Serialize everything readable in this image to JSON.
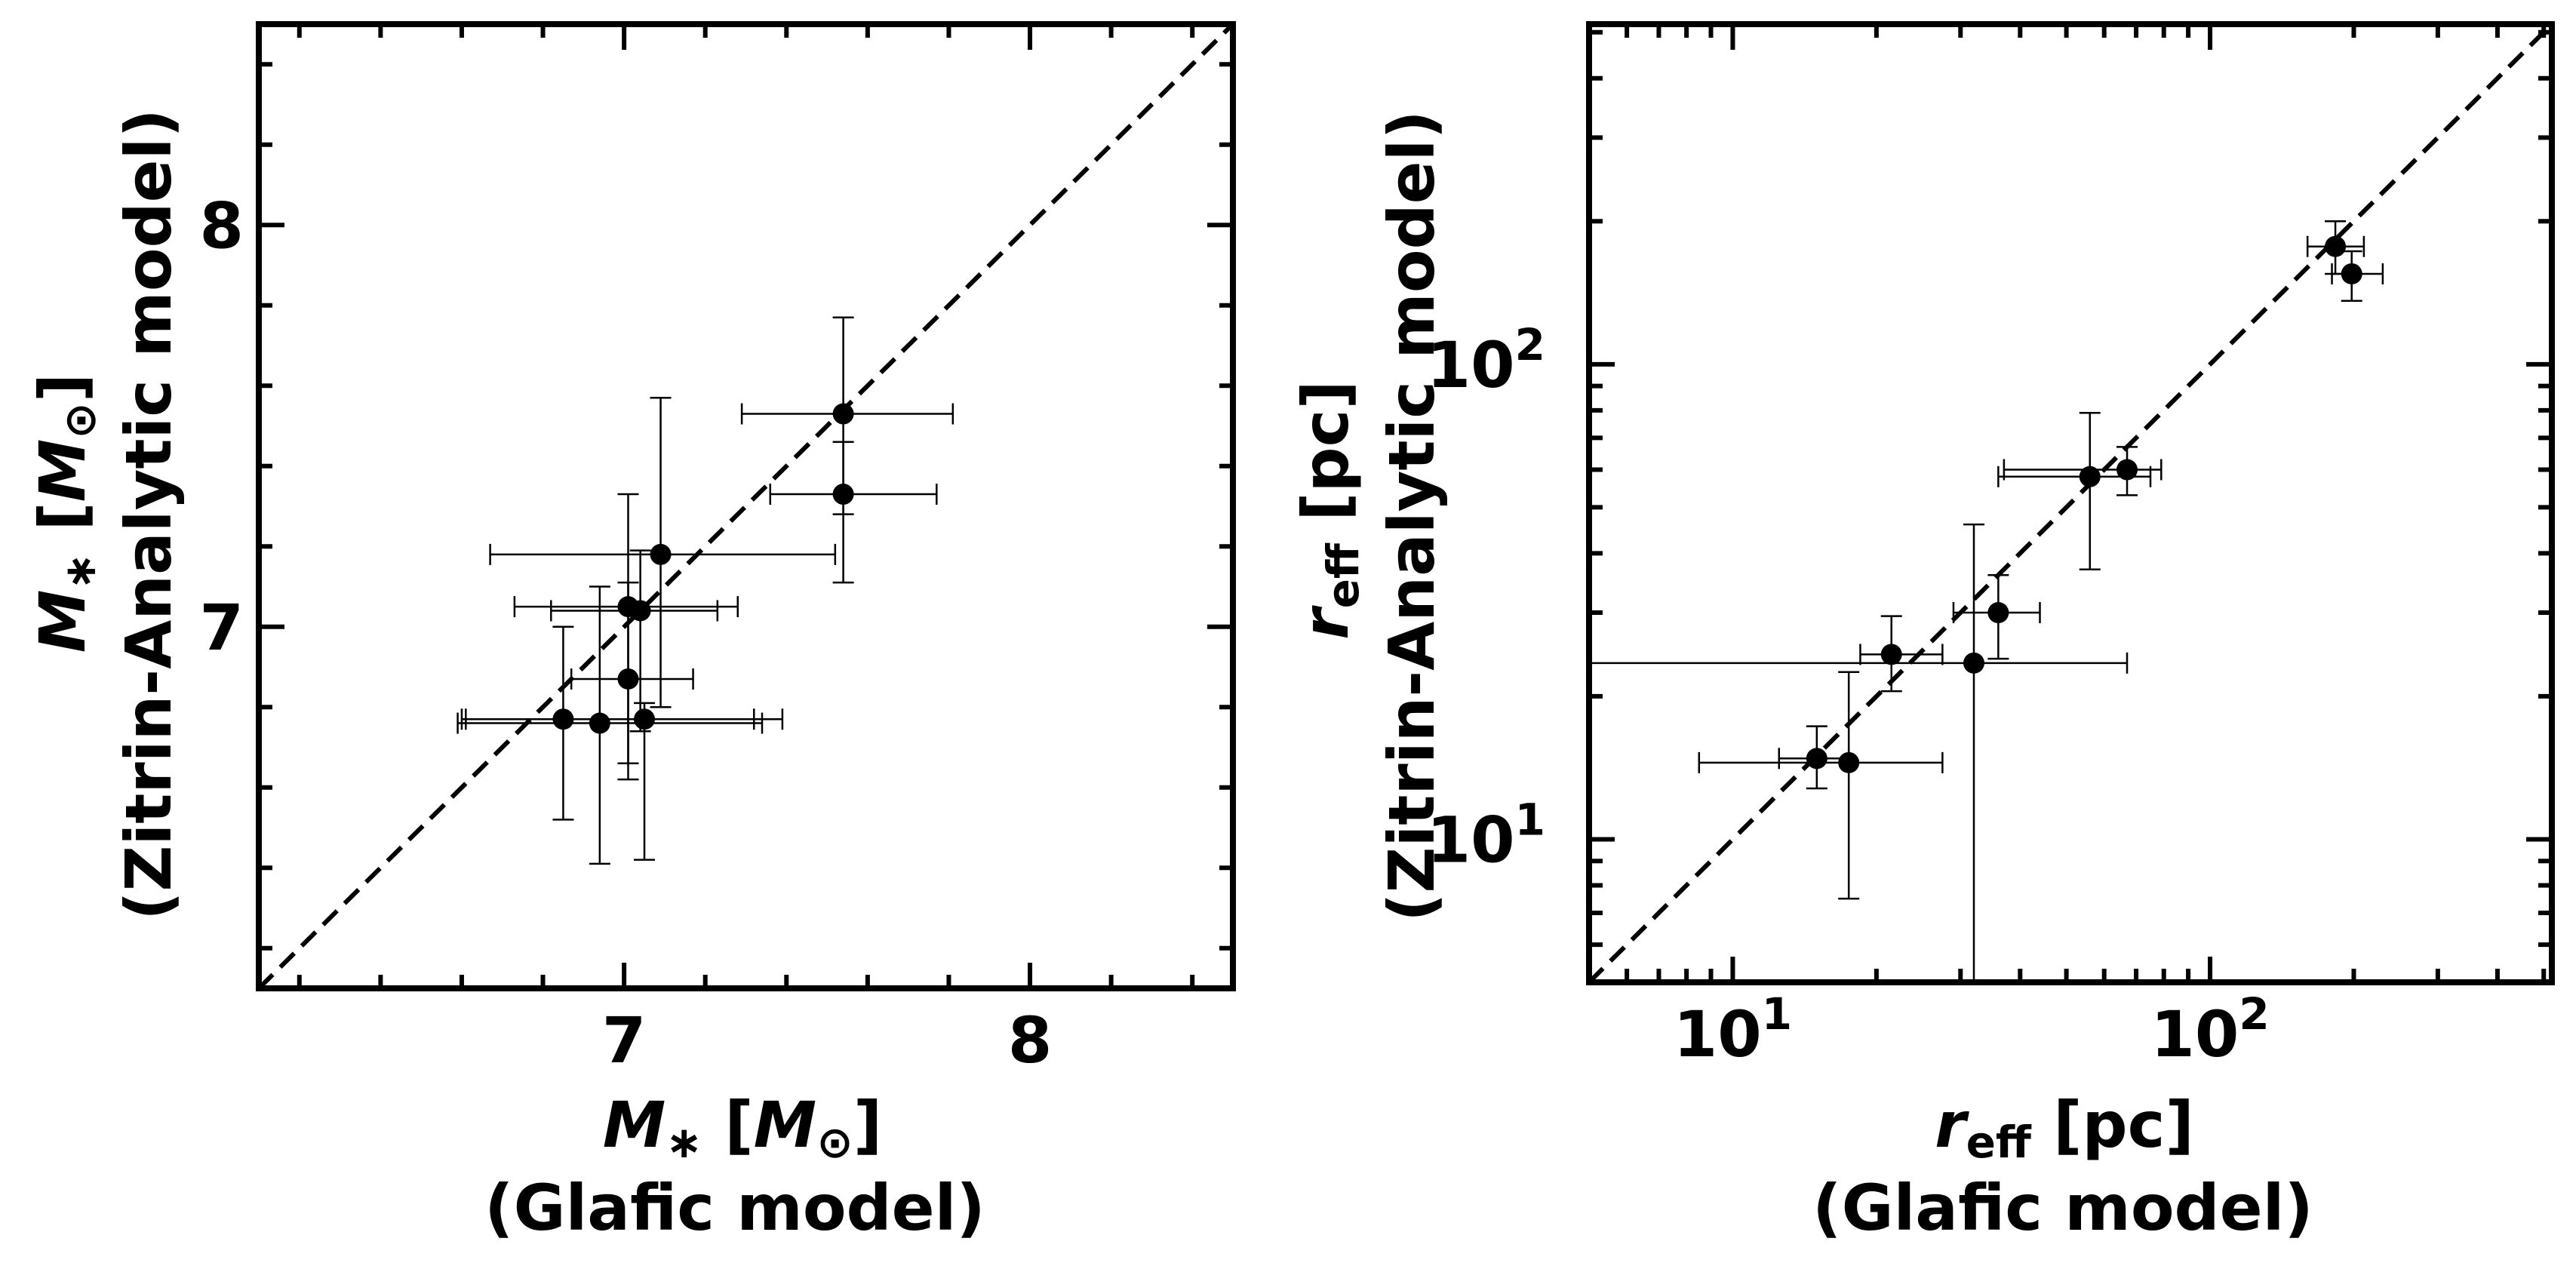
{
  "chart_data": [
    {
      "type": "scatter",
      "xlabel": {
        "line1_symbol": "M",
        "line1_sub": "∗",
        "line1_unit_symbol": "M",
        "line1_unit_sub": "⊙",
        "line2": "(Glafic model)"
      },
      "ylabel": {
        "line1_symbol": "M",
        "line1_sub": "∗",
        "line1_unit_symbol": "M",
        "line1_unit_sub": "⊙",
        "line2": "(Zitrin-Analytic model)"
      },
      "xlim": [
        6.1,
        8.5
      ],
      "ylim": [
        6.1,
        8.5
      ],
      "xscale": "linear",
      "yscale": "linear",
      "x_major_ticks": [
        7,
        8
      ],
      "x_tick_labels": [
        "7",
        "8"
      ],
      "y_major_ticks": [
        7,
        8
      ],
      "y_tick_labels": [
        "7",
        "8"
      ],
      "minor_tick_step": 0.2,
      "one_to_one_line": true,
      "points": [
        {
          "x": 7.54,
          "y": 7.53,
          "xerr": [
            0.25,
            0.27
          ],
          "yerr": [
            0.25,
            0.24
          ]
        },
        {
          "x": 7.54,
          "y": 7.33,
          "xerr": [
            0.18,
            0.23
          ],
          "yerr": [
            0.22,
            0.13
          ]
        },
        {
          "x": 7.09,
          "y": 7.18,
          "xerr": [
            0.42,
            0.43
          ],
          "yerr": [
            0.38,
            0.39
          ]
        },
        {
          "x": 7.01,
          "y": 7.05,
          "xerr": [
            0.28,
            0.27
          ],
          "yerr": [
            0.43,
            0.28
          ]
        },
        {
          "x": 7.04,
          "y": 7.04,
          "xerr": [
            0.22,
            0.19
          ],
          "yerr": [
            0.3,
            0.15
          ]
        },
        {
          "x": 7.01,
          "y": 6.87,
          "xerr": [
            0.14,
            0.16
          ],
          "yerr": [
            0.21,
            0.24
          ]
        },
        {
          "x": 6.85,
          "y": 6.77,
          "xerr": [
            0.25,
            0.47
          ],
          "yerr": [
            0.25,
            0.23
          ]
        },
        {
          "x": 6.94,
          "y": 6.76,
          "xerr": [
            0.35,
            0.4
          ],
          "yerr": [
            0.35,
            0.34
          ]
        },
        {
          "x": 7.05,
          "y": 6.77,
          "xerr": [
            0.44,
            0.34
          ],
          "yerr": [
            0.35,
            0.04
          ]
        }
      ]
    },
    {
      "type": "scatter",
      "xlabel": {
        "line1_symbol": "r",
        "line1_sub": "eff",
        "line1_unit": "[pc]",
        "line2": "(Glafic model)"
      },
      "ylabel": {
        "line1_symbol": "r",
        "line1_sub": "eff",
        "line1_unit": "[pc]",
        "line2": "(Zitrin-Analytic model)"
      },
      "xlim": [
        5,
        520
      ],
      "ylim": [
        5,
        520
      ],
      "xscale": "log",
      "yscale": "log",
      "x_major_ticks": [
        10,
        100
      ],
      "x_tick_labels": [
        {
          "base": "10",
          "exp": "1"
        },
        {
          "base": "10",
          "exp": "2"
        }
      ],
      "y_major_ticks": [
        10,
        100
      ],
      "y_tick_labels": [
        {
          "base": "10",
          "exp": "1"
        },
        {
          "base": "10",
          "exp": "2"
        }
      ],
      "one_to_one_line": true,
      "points": [
        {
          "x": 183,
          "y": 177,
          "xerr": [
            23,
            27
          ],
          "yerr": [
            22,
            23
          ]
        },
        {
          "x": 198,
          "y": 155,
          "xerr": [
            18,
            32
          ],
          "yerr": [
            19,
            18
          ]
        },
        {
          "x": 56,
          "y": 58,
          "xerr": [
            20,
            19
          ],
          "yerr": [
            21,
            21
          ]
        },
        {
          "x": 67,
          "y": 60,
          "xerr": [
            30,
            12
          ],
          "yerr": [
            7,
            7
          ]
        },
        {
          "x": 36,
          "y": 30,
          "xerr": [
            7,
            8
          ],
          "yerr": [
            6,
            6
          ]
        },
        {
          "x": 21.5,
          "y": 24.5,
          "xerr": [
            3,
            6
          ],
          "yerr": [
            4,
            5
          ]
        },
        {
          "x": 32,
          "y": 23.5,
          "xerr": [
            27,
            35
          ],
          "yerr": [
            18.5,
            22.5
          ]
        },
        {
          "x": 15,
          "y": 14.8,
          "xerr": [
            2.5,
            2.5
          ],
          "yerr": [
            2,
            2.5
          ]
        },
        {
          "x": 17.5,
          "y": 14.5,
          "xerr": [
            9,
            10
          ],
          "yerr": [
            7,
            8
          ]
        }
      ]
    }
  ]
}
